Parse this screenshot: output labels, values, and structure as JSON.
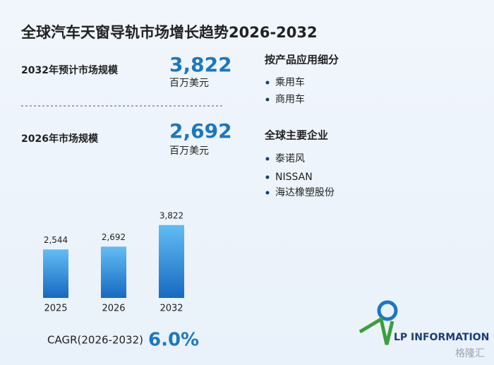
{
  "header": {
    "title": "全球汽车天窗导轨市场增长趋势2026-2032"
  },
  "stats": [
    {
      "label": "2032年预计市场规模",
      "value": "3,822",
      "unit": "百万美元"
    },
    {
      "label": "2026年市场规模",
      "value": "2,692",
      "unit": "百万美元"
    }
  ],
  "segments": {
    "title": "按产品应用细分",
    "items": [
      "乘用车",
      "商用车"
    ]
  },
  "companies": {
    "title": "全球主要企业",
    "items": [
      "泰诺风",
      "NISSAN",
      "海达橡塑股份"
    ]
  },
  "chart_data": {
    "type": "bar",
    "categories": [
      "2025",
      "2026",
      "2032"
    ],
    "values": [
      2544,
      2692,
      3822
    ],
    "value_labels": [
      "2,544",
      "2,692",
      "3,822"
    ],
    "color": "#1a78c8"
  },
  "cagr": {
    "label": "CAGR(2026-2032)",
    "value": "6.0%"
  },
  "logo": {
    "text": "LP INFORMATION"
  },
  "watermark": {
    "text": "格隆汇"
  }
}
